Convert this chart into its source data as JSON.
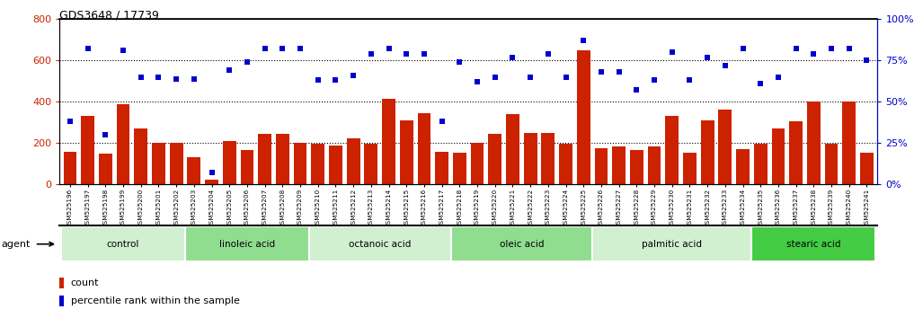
{
  "title": "GDS3648 / 17739",
  "samples": [
    "GSM525196",
    "GSM525197",
    "GSM525198",
    "GSM525199",
    "GSM525200",
    "GSM525201",
    "GSM525202",
    "GSM525203",
    "GSM525204",
    "GSM525205",
    "GSM525206",
    "GSM525207",
    "GSM525208",
    "GSM525209",
    "GSM525210",
    "GSM525211",
    "GSM525212",
    "GSM525213",
    "GSM525214",
    "GSM525215",
    "GSM525216",
    "GSM525217",
    "GSM525218",
    "GSM525219",
    "GSM525220",
    "GSM525221",
    "GSM525222",
    "GSM525223",
    "GSM525224",
    "GSM525225",
    "GSM525226",
    "GSM525227",
    "GSM525228",
    "GSM525229",
    "GSM525230",
    "GSM525231",
    "GSM525232",
    "GSM525233",
    "GSM525234",
    "GSM525235",
    "GSM525236",
    "GSM525237",
    "GSM525238",
    "GSM525239",
    "GSM525240",
    "GSM525241"
  ],
  "counts": [
    160,
    330,
    150,
    390,
    270,
    200,
    200,
    130,
    25,
    210,
    165,
    245,
    245,
    200,
    195,
    190,
    225,
    195,
    415,
    310,
    345,
    160,
    155,
    200,
    245,
    340,
    250,
    250,
    195,
    650,
    175,
    185,
    165,
    185,
    330,
    155,
    310,
    360,
    170,
    195,
    270,
    305,
    400,
    195,
    400,
    155
  ],
  "percentile_ranks": [
    38,
    82,
    30,
    81,
    65,
    65,
    64,
    64,
    7,
    69,
    74,
    82,
    82,
    82,
    63,
    63,
    66,
    79,
    82,
    79,
    79,
    38,
    74,
    62,
    65,
    77,
    65,
    79,
    65,
    87,
    68,
    68,
    57,
    63,
    80,
    63,
    77,
    72,
    82,
    61,
    65,
    82,
    79,
    82,
    82,
    75
  ],
  "groups": [
    {
      "name": "control",
      "start": 0,
      "end": 7,
      "color": "#c8f0c0"
    },
    {
      "name": "linoleic acid",
      "start": 7,
      "end": 14,
      "color": "#90e890"
    },
    {
      "name": "octanoic acid",
      "start": 14,
      "end": 22,
      "color": "#c8f0c0"
    },
    {
      "name": "oleic acid",
      "start": 22,
      "end": 30,
      "color": "#90e890"
    },
    {
      "name": "palmitic acid",
      "start": 30,
      "end": 39,
      "color": "#c8f0c0"
    },
    {
      "name": "stearic acid",
      "start": 39,
      "end": 46,
      "color": "#66dd66"
    }
  ],
  "bar_color": "#cc2200",
  "dot_color": "#0000cc",
  "ylim_left": [
    0,
    800
  ],
  "ylim_right": [
    0,
    100
  ],
  "yticks_left": [
    0,
    200,
    400,
    600,
    800
  ],
  "yticks_right": [
    0,
    25,
    50,
    75,
    100
  ],
  "grid_values": [
    200,
    400,
    600
  ],
  "plot_bg": "#ffffff",
  "fig_bg": "#ffffff",
  "group_colors_alt": [
    "#cceecc",
    "#88dd88",
    "#cceecc",
    "#88dd88",
    "#cceecc",
    "#44cc44"
  ]
}
